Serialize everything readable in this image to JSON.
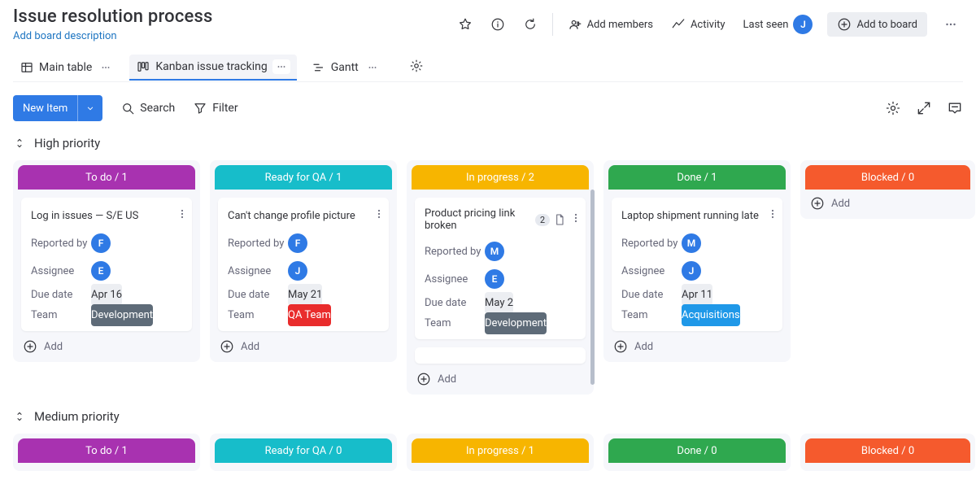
{
  "board": {
    "title": "Issue resolution process",
    "description": "Add board description"
  },
  "header": {
    "add_members": "Add members",
    "activity": "Activity",
    "last_seen": "Last seen",
    "last_seen_avatar": "J",
    "add_to_board": "Add to board"
  },
  "views": {
    "main_table": "Main table",
    "kanban": "Kanban issue tracking",
    "gantt": "Gantt"
  },
  "toolbar": {
    "new_item": "New Item",
    "search": "Search",
    "filter": "Filter"
  },
  "labels": {
    "reported_by": "Reported by",
    "assignee": "Assignee",
    "due_date": "Due date",
    "team": "Team",
    "add": "Add"
  },
  "colors": {
    "todo": "#a832b0",
    "ready_qa": "#17bdca",
    "in_progress": "#f7b500",
    "done": "#2fa84f",
    "blocked": "#f55a2d",
    "team_development": "#5e6b78",
    "team_qa": "#e92c2c",
    "team_acquisitions": "#1f98e8",
    "primary_blue": "#2f7ae5"
  },
  "groups": [
    {
      "name": "High priority",
      "columns": [
        {
          "key": "todo",
          "title": "To do / 1",
          "cards": [
            {
              "title": "Log in issues — S/E US",
              "reported_by": "F",
              "assignee": "E",
              "due_date": "Apr 16",
              "team": "Development",
              "team_color_key": "team_development"
            }
          ]
        },
        {
          "key": "ready_qa",
          "title": "Ready for QA / 1",
          "cards": [
            {
              "title": "Can't change profile picture",
              "reported_by": "F",
              "assignee": "J",
              "due_date": "May 21",
              "team": "QA Team",
              "team_color_key": "team_qa"
            }
          ]
        },
        {
          "key": "in_progress",
          "title": "In progress / 2",
          "cards": [
            {
              "title": "Product pricing link broken",
              "reported_by": "M",
              "assignee": "E",
              "due_date": "May 2",
              "team": "Development",
              "team_color_key": "team_development",
              "badge": "2",
              "show_extra_icon": true
            }
          ],
          "has_more_below": true
        },
        {
          "key": "done",
          "title": "Done / 1",
          "cards": [
            {
              "title": "Laptop shipment running late",
              "reported_by": "M",
              "assignee": "J",
              "due_date": "Apr 11",
              "team": "Acquisitions",
              "team_color_key": "team_acquisitions"
            }
          ]
        },
        {
          "key": "blocked",
          "title": "Blocked / 0",
          "cards": []
        }
      ]
    },
    {
      "name": "Medium priority",
      "columns": [
        {
          "key": "todo",
          "title": "To do / 1"
        },
        {
          "key": "ready_qa",
          "title": "Ready for QA / 0"
        },
        {
          "key": "in_progress",
          "title": "In progress / 1"
        },
        {
          "key": "done",
          "title": "Done / 0"
        },
        {
          "key": "blocked",
          "title": "Blocked / 0"
        }
      ]
    }
  ]
}
